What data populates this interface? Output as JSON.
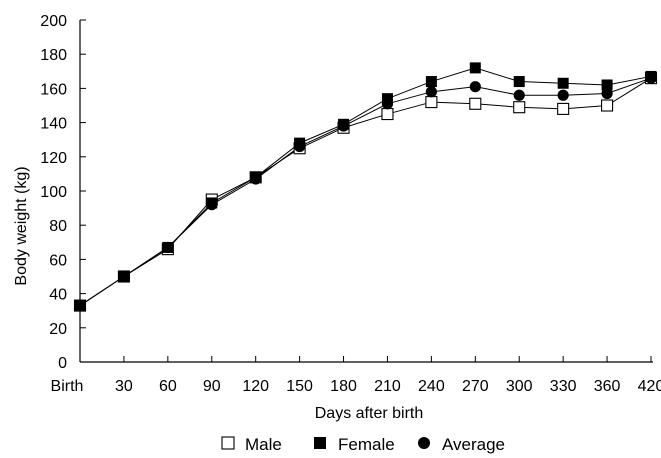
{
  "chart_data": {
    "type": "line",
    "xlabel": "Days after birth",
    "ylabel": "Body weight (kg)",
    "ylim": [
      0,
      200
    ],
    "yticks": [
      "0",
      "20",
      "40",
      "60",
      "80",
      "100",
      "120",
      "140",
      "160",
      "180",
      "200"
    ],
    "categories": [
      "Birth",
      "30",
      "60",
      "90",
      "120",
      "150",
      "180",
      "210",
      "240",
      "270",
      "300",
      "330",
      "360",
      "420"
    ],
    "grid": false,
    "legend_position": "bottom",
    "series": [
      {
        "name": "Male",
        "marker": "open-square",
        "color": "#000000",
        "values": [
          33,
          50,
          66,
          95,
          108,
          125,
          137,
          145,
          152,
          151,
          149,
          148,
          150,
          166
        ]
      },
      {
        "name": "Female",
        "marker": "filled-square",
        "color": "#000000",
        "values": [
          33,
          50,
          67,
          93,
          108,
          128,
          139,
          154,
          164,
          172,
          164,
          163,
          162,
          167
        ]
      },
      {
        "name": "Average",
        "marker": "filled-circle",
        "color": "#000000",
        "values": [
          33,
          50,
          67,
          92,
          107,
          126,
          138,
          151,
          158,
          161,
          156,
          156,
          157,
          166
        ]
      }
    ]
  }
}
